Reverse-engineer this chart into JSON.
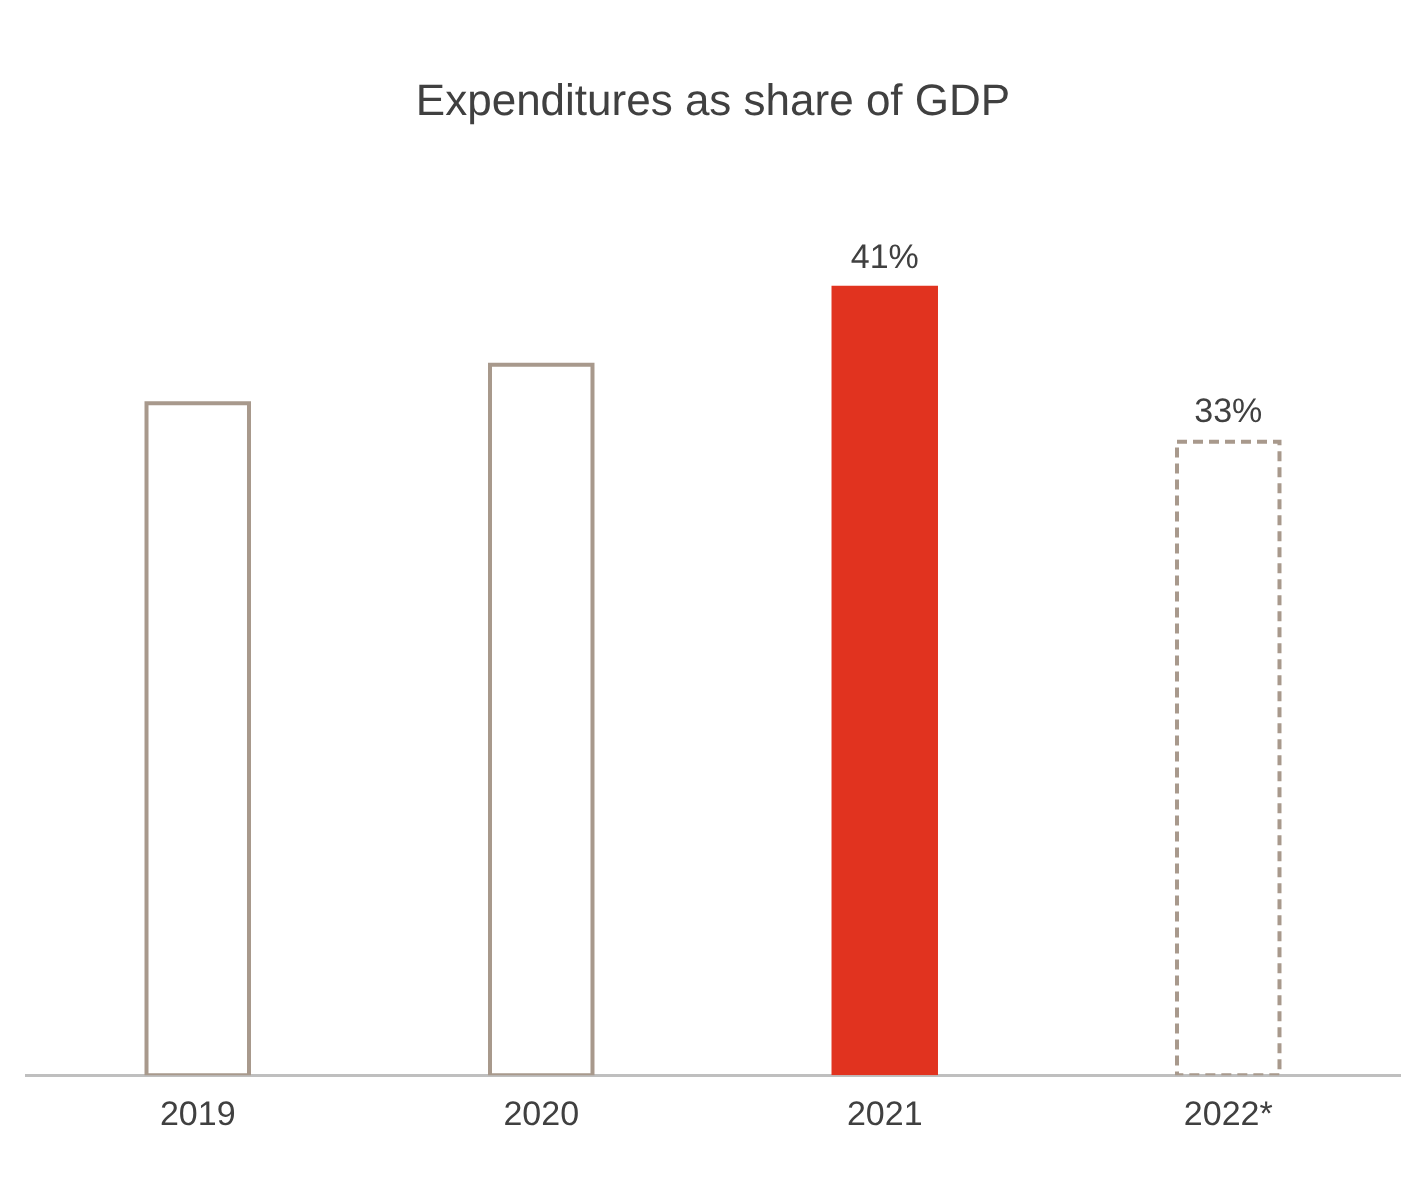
{
  "chart_data": {
    "type": "bar",
    "title": "Expenditures as share of GDP",
    "categories": [
      "2019",
      "2020",
      "2021",
      "2022*"
    ],
    "series": [
      {
        "color": "#a8998c",
        "line_style": "solid",
        "values": [
          35,
          37,
          null,
          null
        ],
        "value_labels": [
          null,
          null,
          null,
          null
        ]
      },
      {
        "color": "#e1331f",
        "values": [
          null,
          null,
          41,
          null
        ],
        "value_labels": [
          null,
          null,
          "41%",
          null
        ]
      },
      {
        "color": "#a8998c",
        "line_style": "dashed",
        "values": [
          null,
          null,
          null,
          33
        ],
        "value_labels": [
          null,
          null,
          null,
          "33%"
        ]
      }
    ],
    "legend": false,
    "grid": false
  }
}
